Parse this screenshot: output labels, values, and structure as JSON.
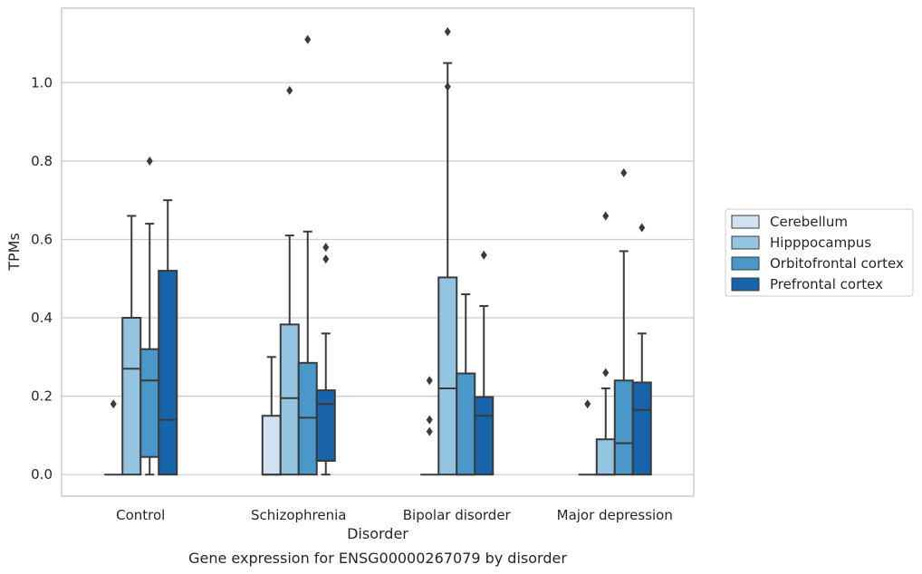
{
  "chart_data": {
    "type": "box",
    "title": "",
    "caption": "Gene expression for ENSG00000267079 by disorder",
    "xlabel": "Disorder",
    "ylabel": "TPMs",
    "ylim": [
      -0.055,
      1.19
    ],
    "yticks": [
      0.0,
      0.2,
      0.4,
      0.6,
      0.8,
      1.0
    ],
    "ytick_labels": [
      "0.0",
      "0.2",
      "0.4",
      "0.6",
      "0.8",
      "1.0"
    ],
    "categories": [
      "Control",
      "Schizophrenia",
      "Bipolar disorder",
      "Major depression"
    ],
    "grid": "horizontal",
    "legend_position": "right",
    "series": [
      {
        "name": "Cerebellum",
        "color": "#d0e1f2",
        "boxes": [
          {
            "q1": 0.0,
            "median": 0.0,
            "q3": 0.0,
            "whislo": 0.0,
            "whishi": 0.0,
            "fliers": [
              0.18
            ]
          },
          {
            "q1": 0.0,
            "median": 0.0,
            "q3": 0.15,
            "whislo": 0.0,
            "whishi": 0.3,
            "fliers": []
          },
          {
            "q1": 0.0,
            "median": 0.0,
            "q3": 0.0,
            "whislo": 0.0,
            "whishi": 0.0,
            "fliers": [
              0.11,
              0.14,
              0.24
            ]
          },
          {
            "q1": 0.0,
            "median": 0.0,
            "q3": 0.0,
            "whislo": 0.0,
            "whishi": 0.0,
            "fliers": [
              0.18
            ]
          }
        ]
      },
      {
        "name": "Hipppocampus",
        "color": "#94c4df",
        "boxes": [
          {
            "q1": 0.0,
            "median": 0.27,
            "q3": 0.4,
            "whislo": 0.0,
            "whishi": 0.66,
            "fliers": []
          },
          {
            "q1": 0.0,
            "median": 0.195,
            "q3": 0.383,
            "whislo": 0.0,
            "whishi": 0.61,
            "fliers": [
              0.98
            ]
          },
          {
            "q1": 0.0,
            "median": 0.22,
            "q3": 0.503,
            "whislo": 0.0,
            "whishi": 1.05,
            "fliers": [
              0.99,
              1.13
            ]
          },
          {
            "q1": 0.0,
            "median": 0.0,
            "q3": 0.09,
            "whislo": 0.0,
            "whishi": 0.22,
            "fliers": [
              0.26,
              0.66
            ]
          }
        ]
      },
      {
        "name": "Orbitofrontal cortex",
        "color": "#4a98c9",
        "boxes": [
          {
            "q1": 0.045,
            "median": 0.24,
            "q3": 0.32,
            "whislo": 0.0,
            "whishi": 0.64,
            "fliers": [
              0.8
            ]
          },
          {
            "q1": 0.0,
            "median": 0.145,
            "q3": 0.285,
            "whislo": 0.0,
            "whishi": 0.62,
            "fliers": [
              1.11
            ]
          },
          {
            "q1": 0.0,
            "median": 0.0,
            "q3": 0.258,
            "whislo": 0.0,
            "whishi": 0.46,
            "fliers": []
          },
          {
            "q1": 0.0,
            "median": 0.08,
            "q3": 0.24,
            "whislo": 0.0,
            "whishi": 0.57,
            "fliers": [
              0.77
            ]
          }
        ]
      },
      {
        "name": "Prefrontal cortex",
        "color": "#1764ab",
        "boxes": [
          {
            "q1": 0.0,
            "median": 0.14,
            "q3": 0.52,
            "whislo": 0.0,
            "whishi": 0.7,
            "fliers": []
          },
          {
            "q1": 0.035,
            "median": 0.18,
            "q3": 0.215,
            "whislo": 0.0,
            "whishi": 0.36,
            "fliers": [
              0.55,
              0.58
            ]
          },
          {
            "q1": 0.0,
            "median": 0.15,
            "q3": 0.198,
            "whislo": 0.0,
            "whishi": 0.43,
            "fliers": [
              0.56
            ]
          },
          {
            "q1": 0.0,
            "median": 0.165,
            "q3": 0.235,
            "whislo": 0.0,
            "whishi": 0.36,
            "fliers": [
              0.63
            ]
          }
        ]
      }
    ]
  }
}
